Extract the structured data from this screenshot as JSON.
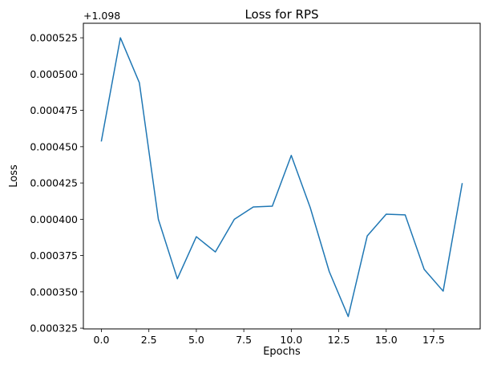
{
  "chart_data": {
    "type": "line",
    "title": "Loss for RPS",
    "xlabel": "Epochs",
    "ylabel": "Loss",
    "y_offset_label": "+1.098",
    "xlim": [
      -0.95,
      19.95
    ],
    "ylim": [
      0.0003245,
      0.000535
    ],
    "xticks": [
      0.0,
      2.5,
      5.0,
      7.5,
      10.0,
      12.5,
      15.0,
      17.5
    ],
    "xtick_labels": [
      "0.0",
      "2.5",
      "5.0",
      "7.5",
      "10.0",
      "12.5",
      "15.0",
      "17.5"
    ],
    "yticks": [
      0.000325,
      0.00035,
      0.000375,
      0.0004,
      0.000425,
      0.00045,
      0.000475,
      0.0005,
      0.000525
    ],
    "ytick_labels": [
      "0.000325",
      "0.000350",
      "0.000375",
      "0.000400",
      "0.000425",
      "0.000450",
      "0.000475",
      "0.000500",
      "0.000525"
    ],
    "grid": false,
    "series": [
      {
        "color": "#1f77b4",
        "x": [
          0,
          1,
          2,
          3,
          4,
          5,
          6,
          7,
          8,
          9,
          10,
          11,
          12,
          13,
          14,
          15,
          16,
          17,
          18,
          19
        ],
        "y": [
          0.000454,
          0.000525,
          0.000494,
          0.0004,
          0.000359,
          0.000388,
          0.0003775,
          0.0004,
          0.0004085,
          0.000409,
          0.000444,
          0.000408,
          0.000364,
          0.000333,
          0.0003885,
          0.0004035,
          0.000403,
          0.0003655,
          0.0003505,
          0.0004245
        ]
      }
    ]
  }
}
